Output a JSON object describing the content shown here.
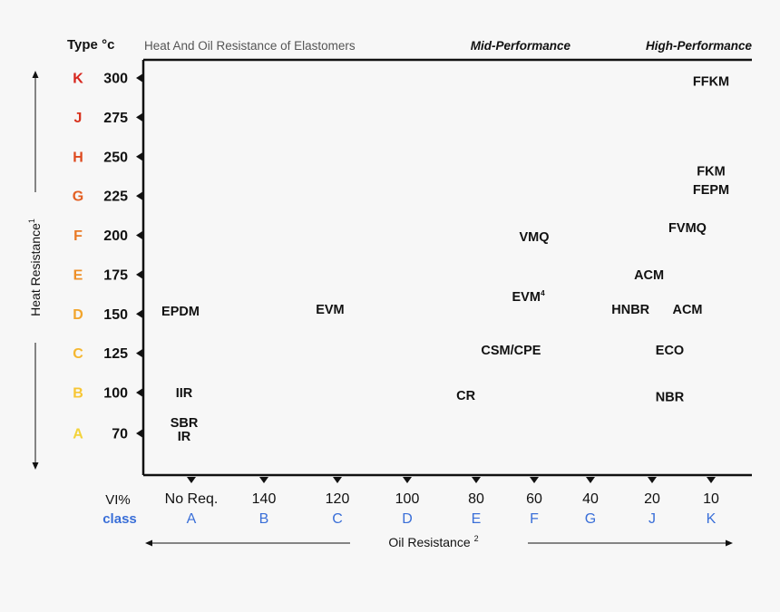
{
  "colors": {
    "axis": "#111111",
    "text": "#111111",
    "muted": "#555555",
    "class_blue": "#3a6fd8"
  },
  "chart_data": {
    "type": "scatter",
    "title": "Heat And Oil Resistance of Elastomers",
    "header_left": "Type °c",
    "header_mid": "Mid-Performance",
    "header_right": "High-Performance",
    "ylabel": "Heat Resistance",
    "ylabel_sup": "1",
    "xlabel": "Oil Resistance",
    "xlabel_sup": "2",
    "x_row_label": "VI%",
    "x_class_label": "class",
    "y_ticks": [
      {
        "type": "K",
        "temp": "300",
        "color": "#d7261e"
      },
      {
        "type": "J",
        "temp": "275",
        "color": "#d8341f"
      },
      {
        "type": "H",
        "temp": "250",
        "color": "#de4a1f"
      },
      {
        "type": "G",
        "temp": "225",
        "color": "#e35f22"
      },
      {
        "type": "F",
        "temp": "200",
        "color": "#e97a25"
      },
      {
        "type": "E",
        "temp": "175",
        "color": "#ee8f27"
      },
      {
        "type": "D",
        "temp": "150",
        "color": "#f2a52c"
      },
      {
        "type": "C",
        "temp": "125",
        "color": "#f5b730"
      },
      {
        "type": "B",
        "temp": "100",
        "color": "#f7c634"
      },
      {
        "type": "A",
        "temp": "70",
        "color": "#f3d33a"
      }
    ],
    "x_ticks": [
      {
        "vi": "No Req.",
        "class": "A"
      },
      {
        "vi": "140",
        "class": "B"
      },
      {
        "vi": "120",
        "class": "C"
      },
      {
        "vi": "100",
        "class": "D"
      },
      {
        "vi": "80",
        "class": "E"
      },
      {
        "vi": "60",
        "class": "F"
      },
      {
        "vi": "40",
        "class": "G"
      },
      {
        "vi": "20",
        "class": "J"
      },
      {
        "vi": "10",
        "class": "K"
      }
    ],
    "points": [
      {
        "label": "FFKM",
        "sup": "",
        "x": 10,
        "y": 298
      },
      {
        "label": "FKM",
        "sup": "",
        "x": 10,
        "y": 241
      },
      {
        "label": "FEPM",
        "sup": "",
        "x": 10,
        "y": 229
      },
      {
        "label": "FVMQ",
        "sup": "",
        "x": 14,
        "y": 205
      },
      {
        "label": "VMQ",
        "sup": "",
        "x": 60,
        "y": 199
      },
      {
        "label": "ACM",
        "sup": "",
        "x": 21,
        "y": 175
      },
      {
        "label": "EVM",
        "sup": "4",
        "x": 62,
        "y": 161
      },
      {
        "label": "HNBR",
        "sup": "",
        "x": 27,
        "y": 153
      },
      {
        "label": "ACM",
        "sup": "",
        "x": 14,
        "y": 153
      },
      {
        "label": "EPDM",
        "sup": "",
        "x": 163,
        "y": 152
      },
      {
        "label": "EVM",
        "sup": "",
        "x": 122,
        "y": 153
      },
      {
        "label": "CSM/CPE",
        "sup": "",
        "x": 68,
        "y": 127
      },
      {
        "label": "ECO",
        "sup": "",
        "x": 17,
        "y": 127
      },
      {
        "label": "CR",
        "sup": "",
        "x": 83,
        "y": 98
      },
      {
        "label": "NBR",
        "sup": "",
        "x": 17,
        "y": 97
      },
      {
        "label": "IIR",
        "sup": "",
        "x": 162,
        "y": 100
      },
      {
        "label": "SBR",
        "sup": "",
        "x": 162,
        "y": 78
      },
      {
        "label": "IR",
        "sup": "",
        "x": 162,
        "y": 68
      }
    ]
  }
}
